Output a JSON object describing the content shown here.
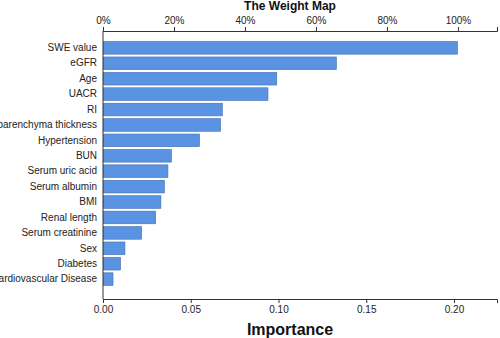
{
  "chart_data": {
    "type": "bar",
    "orientation": "horizontal",
    "title": "The Weight Map",
    "x_label": "Importance",
    "categories": [
      "SWE value",
      "eGFR",
      "Age",
      "UACR",
      "RI",
      "Renal parenchyma thickness",
      "Hypertension",
      "BUN",
      "Serum uric acid",
      "Serum albumin",
      "BMI",
      "Renal length",
      "Serum creatinine",
      "Sex",
      "Diabetes",
      "Cardiovascular Disease"
    ],
    "values": [
      0.202,
      0.133,
      0.099,
      0.094,
      0.068,
      0.067,
      0.055,
      0.039,
      0.037,
      0.035,
      0.033,
      0.03,
      0.022,
      0.0125,
      0.01,
      0.0057
    ],
    "color": "#5b93e3",
    "xlim": [
      0,
      0.2245
    ],
    "xticks": [
      {
        "value": 0,
        "label": "0.00"
      },
      {
        "value": 0.05,
        "label": "0.05"
      },
      {
        "value": 0.1,
        "label": "0.10"
      },
      {
        "value": 0.15,
        "label": "0.15"
      },
      {
        "value": 0.2,
        "label": "0.20"
      }
    ],
    "x2lim": [
      0,
      111
    ],
    "x2ticks": [
      {
        "value": 0,
        "label": "0%"
      },
      {
        "value": 20,
        "label": "20%"
      },
      {
        "value": 40,
        "label": "40%"
      },
      {
        "value": 60,
        "label": "60%"
      },
      {
        "value": 80,
        "label": "80%"
      },
      {
        "value": 100,
        "label": "100%"
      }
    ],
    "grid": false
  }
}
